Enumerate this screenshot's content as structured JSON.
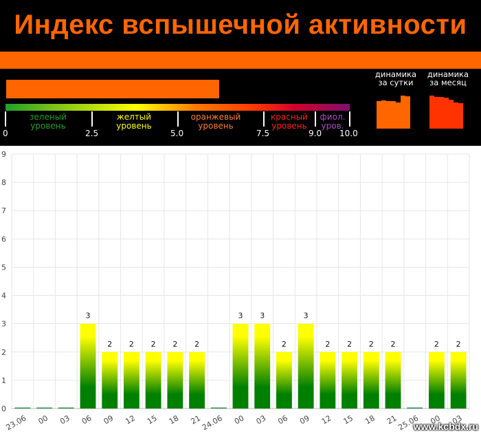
{
  "header": {
    "title": "Индекс вспышечной активности",
    "current_index_fraction": 0.62,
    "levels": [
      {
        "name_line1": "зеленый",
        "name_line2": "уровень",
        "color": "#1fa02a"
      },
      {
        "name_line1": "желтый",
        "name_line2": "уровень",
        "color": "#ffff00"
      },
      {
        "name_line1": "оранжевый",
        "name_line2": "уровень",
        "color": "#ff7b2a"
      },
      {
        "name_line1": "красный",
        "name_line2": "уровень",
        "color": "#ff2020"
      },
      {
        "name_line1": "фиол.",
        "name_line2": "уров.",
        "color": "#b04cc8"
      }
    ],
    "scale_ticks": [
      "0",
      "2.5",
      "5.0",
      "7.5",
      "9.0",
      "10.0"
    ],
    "dynamics_day_label": [
      "динамика",
      "за сутки"
    ],
    "dynamics_month_label": [
      "динамика",
      "за месяц"
    ],
    "dynamics_day_values": [
      0.83,
      0.86,
      0.83,
      0.83,
      0.8,
      1.0,
      0.97
    ],
    "dynamics_month_values": [
      1.0,
      0.96,
      0.96,
      0.94,
      0.88,
      0.8,
      0.78
    ],
    "dynamics_day_color": "#ff6600",
    "dynamics_month_color": "#ff3300"
  },
  "chart_data": {
    "type": "bar",
    "categories": [
      "23.06",
      "00",
      "03",
      "06",
      "09",
      "12",
      "15",
      "18",
      "21",
      "24.06",
      "00",
      "03",
      "06",
      "09",
      "12",
      "15",
      "18",
      "21",
      "25.06",
      "00",
      "03"
    ],
    "values": [
      0,
      0,
      0,
      3,
      2,
      2,
      2,
      2,
      2,
      0,
      3,
      3,
      2,
      3,
      2,
      2,
      2,
      2,
      0,
      2,
      2
    ],
    "value_labels": [
      "",
      "",
      "",
      "3",
      "2",
      "2",
      "2",
      "2",
      "2",
      "",
      "3",
      "3",
      "2",
      "3",
      "2",
      "2",
      "2",
      "2",
      "",
      "2",
      "2"
    ],
    "yticks": [
      "0",
      "1",
      "2",
      "3",
      "4",
      "5",
      "6",
      "7",
      "8",
      "9"
    ],
    "ylim": [
      0,
      9
    ],
    "grid": true,
    "bar_gradient": [
      "#ffff00",
      "#008000"
    ],
    "zero_bar_color": "#2e8b57"
  },
  "watermark": "www.kcbdx.ru"
}
